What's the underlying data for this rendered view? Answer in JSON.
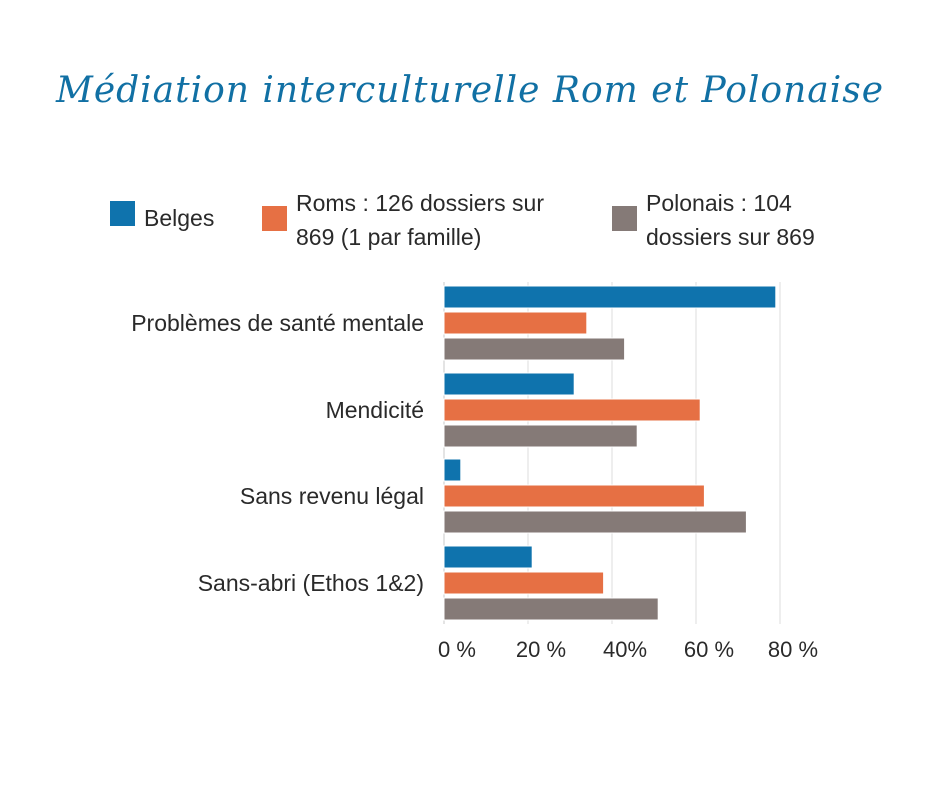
{
  "chart_data": {
    "type": "bar",
    "orientation": "horizontal",
    "title": "Médiation interculturelle Rom et Polonaise",
    "categories": [
      "Problèmes de santé mentale",
      "Mendicité",
      "Sans revenu légal",
      "Sans-abri (Ethos 1&2)"
    ],
    "series": [
      {
        "name": "Belges",
        "color": "#0f73ad",
        "values": [
          79,
          31,
          4,
          21
        ]
      },
      {
        "name": "Roms : 126 dossiers sur 869 (1 par famille)",
        "color": "#e67044",
        "values": [
          34,
          61,
          62,
          38
        ]
      },
      {
        "name": "Polonais : 104 dossiers sur 869",
        "color": "#857a77",
        "values": [
          43,
          46,
          72,
          51
        ]
      }
    ],
    "x_ticks": [
      "0 %",
      "20 %",
      "40%",
      "60 %",
      "80 %"
    ],
    "x_tick_values": [
      0,
      20,
      40,
      60,
      80
    ],
    "xlim": [
      0,
      80
    ],
    "unit": "%",
    "grid": true,
    "legend_position": "top"
  }
}
